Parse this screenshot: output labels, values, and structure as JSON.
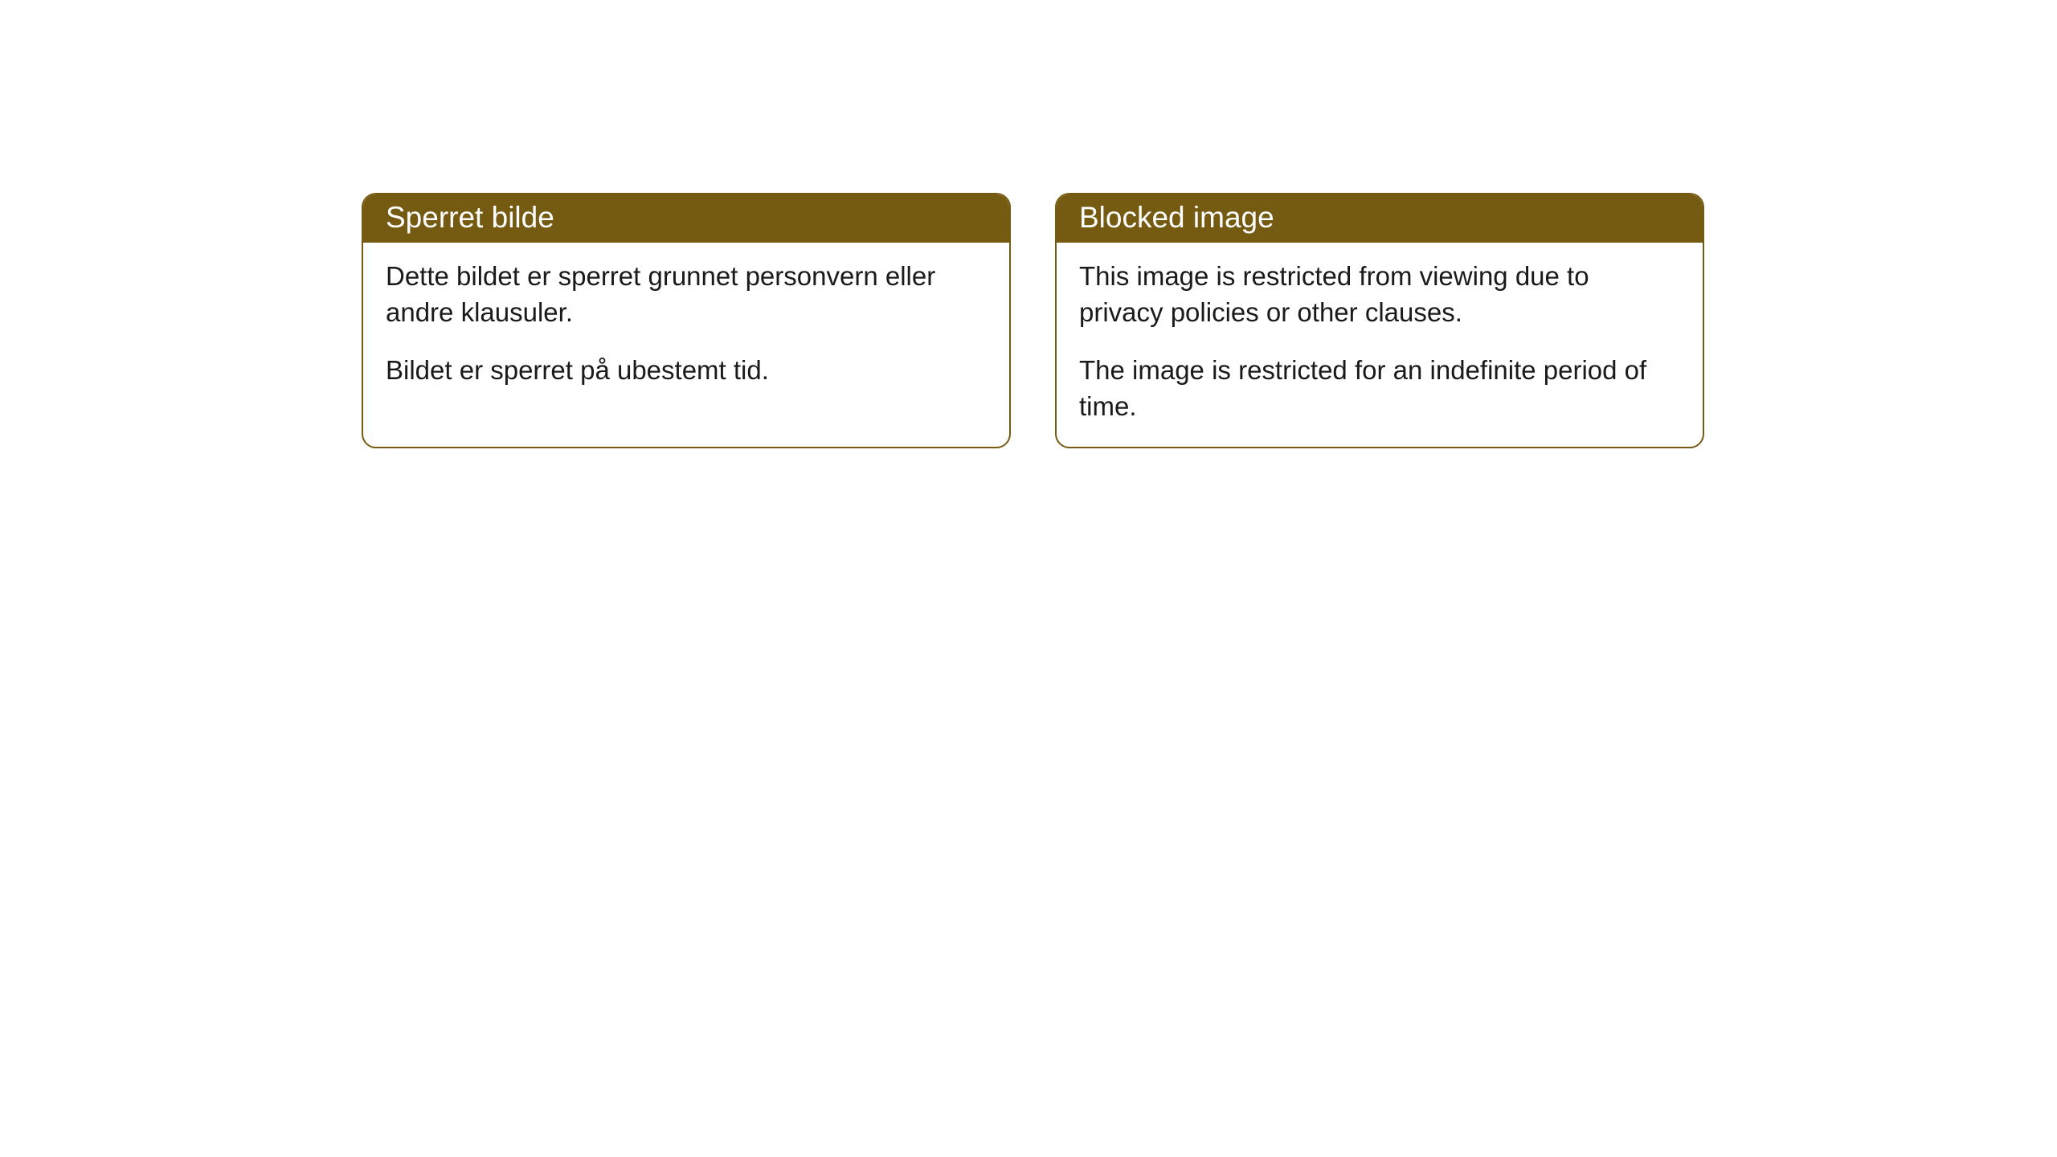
{
  "colors": {
    "header_bg": "#755a11",
    "header_text": "#ffffff",
    "border": "#755a11",
    "body_bg": "#ffffff",
    "body_text": "#1a1a1a"
  },
  "boxes": [
    {
      "title": "Sperret bilde",
      "paragraphs": [
        "Dette bildet er sperret grunnet personvern eller andre klausuler.",
        "Bildet er sperret på ubestemt tid."
      ]
    },
    {
      "title": "Blocked image",
      "paragraphs": [
        "This image is restricted from viewing due to privacy policies or other clauses.",
        "The image is restricted for an indefinite period of time."
      ]
    }
  ]
}
